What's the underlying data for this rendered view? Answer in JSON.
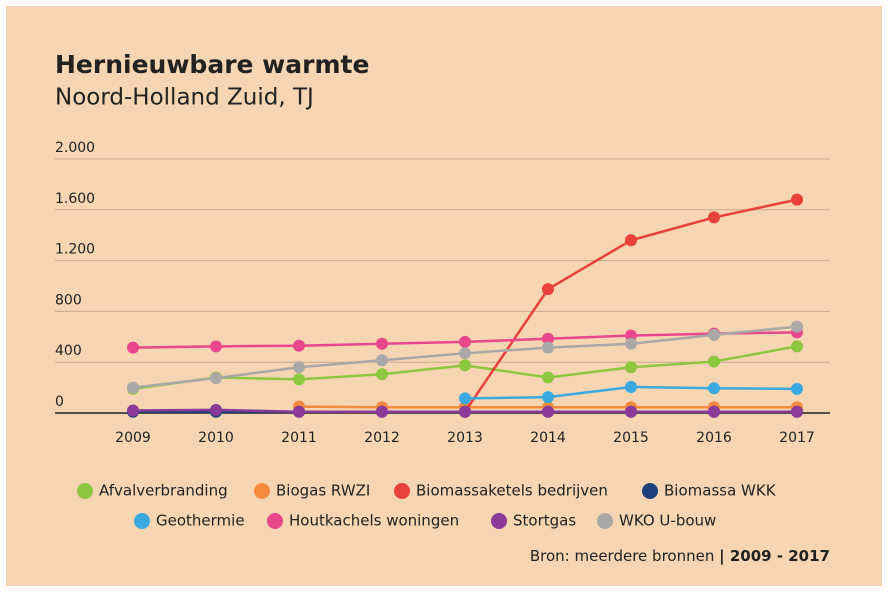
{
  "chart_data": {
    "type": "line",
    "title": "Hernieuwbare warmte",
    "subtitle": "Noord-Holland Zuid, TJ",
    "categories": [
      "2009",
      "2010",
      "2011",
      "2012",
      "2013",
      "2014",
      "2015",
      "2016",
      "2017"
    ],
    "series": [
      {
        "name": "Afvalverbranding",
        "color": "#8dc63f",
        "values": [
          190,
          280,
          265,
          305,
          375,
          280,
          360,
          405,
          525
        ]
      },
      {
        "name": "Biogas RWZI",
        "color": "#f58a3c",
        "values": [
          null,
          null,
          50,
          45,
          45,
          45,
          45,
          45,
          45
        ]
      },
      {
        "name": "Biomassaketels bedrijven",
        "color": "#e8403a",
        "values": [
          null,
          null,
          null,
          null,
          10,
          975,
          1360,
          1540,
          1680
        ]
      },
      {
        "name": "Biomassa WKK",
        "color": "#1d3f7a",
        "values": [
          10,
          10,
          10,
          10,
          10,
          10,
          10,
          10,
          10
        ]
      },
      {
        "name": "Geothermie",
        "color": "#3aa9e0",
        "values": [
          null,
          null,
          null,
          null,
          115,
          125,
          205,
          195,
          190
        ]
      },
      {
        "name": "Houtkachels woningen",
        "color": "#e8478b",
        "values": [
          515,
          525,
          530,
          545,
          560,
          585,
          610,
          625,
          635
        ]
      },
      {
        "name": "Stortgas",
        "color": "#8b3a9a",
        "values": [
          20,
          25,
          10,
          10,
          10,
          10,
          10,
          10,
          10
        ]
      },
      {
        "name": "WKO U-bouw",
        "color": "#a8a8a8",
        "values": [
          200,
          275,
          360,
          415,
          470,
          515,
          545,
          615,
          680
        ]
      }
    ],
    "ylim": [
      0,
      2000
    ],
    "yticks": [
      0,
      400,
      800,
      {
        "value": 1200,
        "label": "1.200"
      },
      {
        "value": 1600,
        "label": "1.600"
      },
      {
        "value": 2000,
        "label": "2.000"
      }
    ],
    "grid": true,
    "source": "Bron: meerdere bronnen",
    "period": "| 2009 - 2017"
  }
}
